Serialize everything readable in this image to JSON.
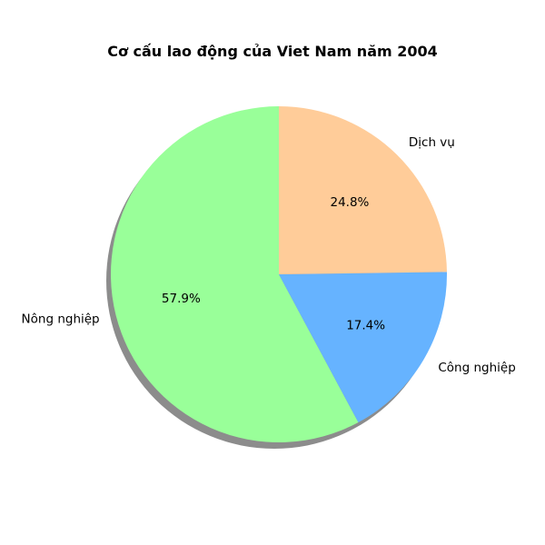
{
  "chart_data": {
    "type": "pie",
    "title": "Cơ cấu lao động của Viet Nam năm 2004",
    "shadow": true,
    "start_angle_deg": 90,
    "direction": "counterclockwise",
    "slices": [
      {
        "label": "Nông nghiệp",
        "value": 57.9,
        "pct_label": "57.9%",
        "color": "#99ff99"
      },
      {
        "label": "Công nghiệp",
        "value": 17.4,
        "pct_label": "17.4%",
        "color": "#66b3ff"
      },
      {
        "label": "Dịch vụ",
        "value": 24.8,
        "pct_label": "24.8%",
        "color": "#ffcc99"
      }
    ]
  }
}
